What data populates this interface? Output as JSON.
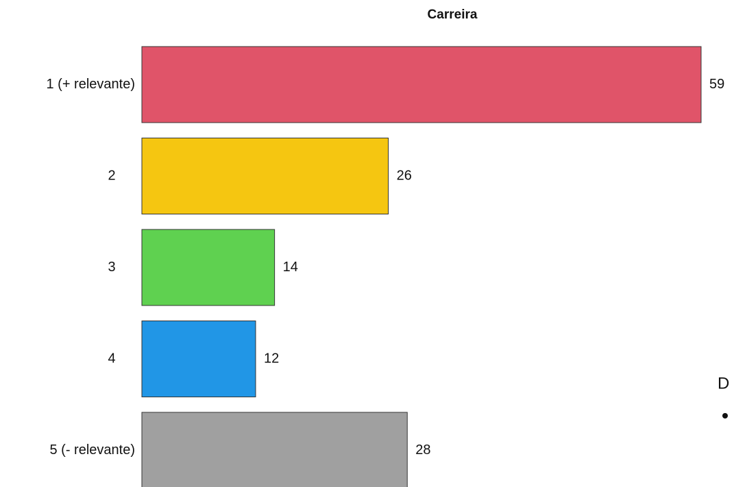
{
  "chart_data": {
    "type": "barh",
    "title": "Carreira",
    "categories": [
      "1 (+ relevante)",
      "2",
      "3",
      "4",
      "5 (- relevante)"
    ],
    "values": [
      59,
      26,
      14,
      12,
      28
    ],
    "colors": [
      "#e05469",
      "#f5c611",
      "#5fd150",
      "#2196e6",
      "#a0a0a0"
    ]
  },
  "side_text": "D"
}
